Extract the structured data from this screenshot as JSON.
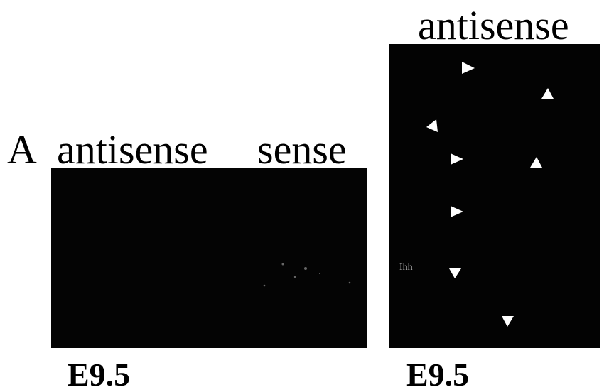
{
  "panel_a": {
    "label": "A",
    "left_title": "antisense",
    "right_title": "sense",
    "stage": "E9.5"
  },
  "panel_b": {
    "title": "antisense",
    "gene_label": "Ihh",
    "stage": "E9.5"
  }
}
